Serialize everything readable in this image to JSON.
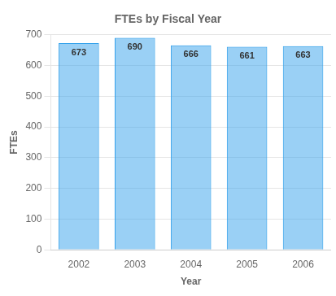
{
  "chart_data": {
    "type": "bar",
    "title": "FTEs by Fiscal Year",
    "categories": [
      "2002",
      "2003",
      "2004",
      "2005",
      "2006"
    ],
    "values": [
      673,
      690,
      666,
      661,
      663
    ],
    "xlabel": "Year",
    "ylabel": "FTEs",
    "ylim": [
      0,
      700
    ],
    "yticks": [
      0,
      100,
      200,
      300,
      400,
      500,
      600,
      700
    ],
    "grid": true,
    "data_labels": true
  }
}
